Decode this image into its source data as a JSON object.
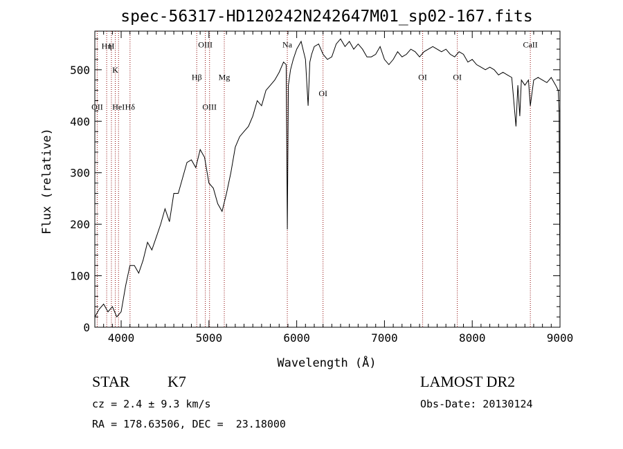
{
  "chart_data": {
    "type": "line",
    "title": "spec-56317-HD120242N242647M01_sp02-167.fits",
    "xlabel": "Wavelength (Å)",
    "ylabel": "Flux (relative)",
    "xlim": [
      3700,
      9000
    ],
    "ylim": [
      0,
      575
    ],
    "xticks": [
      4000,
      5000,
      6000,
      7000,
      8000,
      9000
    ],
    "yticks": [
      0,
      100,
      200,
      300,
      400,
      500
    ],
    "grid": false,
    "line_color": "#000000",
    "marker_color": "#8b0000",
    "series": [
      {
        "x": [
          3700,
          3750,
          3800,
          3850,
          3900,
          3950,
          4000,
          4050,
          4100,
          4150,
          4200,
          4250,
          4300,
          4350,
          4400,
          4450,
          4500,
          4550,
          4600,
          4650,
          4700,
          4750,
          4800,
          4850,
          4900,
          4950,
          5000,
          5050,
          5100,
          5150,
          5200,
          5250,
          5300,
          5350,
          5400,
          5450,
          5500,
          5550,
          5600,
          5650,
          5700,
          5750,
          5800,
          5850,
          5880,
          5893,
          5905,
          5930,
          5960,
          6000,
          6050,
          6100,
          6130,
          6150,
          6170,
          6200,
          6250,
          6300,
          6350,
          6400,
          6450,
          6500,
          6550,
          6600,
          6650,
          6700,
          6750,
          6800,
          6850,
          6900,
          6950,
          7000,
          7050,
          7100,
          7150,
          7200,
          7250,
          7300,
          7350,
          7400,
          7450,
          7500,
          7550,
          7600,
          7650,
          7700,
          7750,
          7800,
          7850,
          7900,
          7950,
          8000,
          8050,
          8100,
          8150,
          8200,
          8250,
          8300,
          8350,
          8400,
          8450,
          8498,
          8520,
          8542,
          8560,
          8600,
          8640,
          8662,
          8700,
          8750,
          8800,
          8850,
          8900,
          8950,
          8980,
          8990,
          9000
        ],
        "y": [
          20,
          35,
          45,
          30,
          40,
          20,
          30,
          80,
          120,
          120,
          105,
          130,
          165,
          150,
          175,
          200,
          230,
          205,
          260,
          260,
          290,
          320,
          325,
          310,
          345,
          330,
          280,
          270,
          240,
          225,
          260,
          300,
          350,
          370,
          380,
          390,
          410,
          440,
          430,
          460,
          470,
          480,
          495,
          515,
          510,
          190,
          470,
          500,
          520,
          540,
          555,
          520,
          430,
          515,
          530,
          545,
          550,
          530,
          520,
          525,
          550,
          560,
          545,
          555,
          540,
          550,
          540,
          525,
          525,
          530,
          545,
          520,
          510,
          520,
          535,
          525,
          530,
          540,
          535,
          525,
          535,
          540,
          545,
          540,
          535,
          540,
          530,
          525,
          535,
          530,
          515,
          520,
          510,
          505,
          500,
          505,
          500,
          490,
          495,
          490,
          485,
          390,
          470,
          410,
          480,
          470,
          480,
          430,
          480,
          485,
          480,
          475,
          485,
          470,
          460,
          420,
          80
        ]
      }
    ],
    "line_markers": [
      {
        "label": "OII",
        "x": 3727,
        "y_rel": 0.735
      },
      {
        "label": "Hη",
        "x": 3835,
        "y_rel": 0.94
      },
      {
        "label": "H",
        "x": 3889,
        "y_rel": 0.94
      },
      {
        "label": "K",
        "x": 3933,
        "y_rel": 0.86
      },
      {
        "label": "HeI",
        "x": 3970,
        "y_rel": 0.735
      },
      {
        "label": "Hδ",
        "x": 4101,
        "y_rel": 0.735
      },
      {
        "label": "Hβ",
        "x": 4861,
        "y_rel": 0.835
      },
      {
        "label": "OIII",
        "x": 4959,
        "y_rel": 0.945
      },
      {
        "label": "OIII",
        "x": 5007,
        "y_rel": 0.735
      },
      {
        "label": "Mg",
        "x": 5175,
        "y_rel": 0.835
      },
      {
        "label": "Na",
        "x": 5893,
        "y_rel": 0.945
      },
      {
        "label": "OI",
        "x": 6300,
        "y_rel": 0.78
      },
      {
        "label": "OI",
        "x": 7435,
        "y_rel": 0.835
      },
      {
        "label": "OI",
        "x": 7830,
        "y_rel": 0.835
      },
      {
        "label": "CaII",
        "x": 8662,
        "y_rel": 0.945
      }
    ]
  },
  "footer": {
    "object_type": "STAR",
    "subclass": "K7",
    "survey": "LAMOST DR2",
    "cz": "cz = 2.4 ± 9.3 km/s",
    "obs_date": "Obs-Date: 20130124",
    "coords": "RA = 178.63506, DEC =  23.18000"
  }
}
